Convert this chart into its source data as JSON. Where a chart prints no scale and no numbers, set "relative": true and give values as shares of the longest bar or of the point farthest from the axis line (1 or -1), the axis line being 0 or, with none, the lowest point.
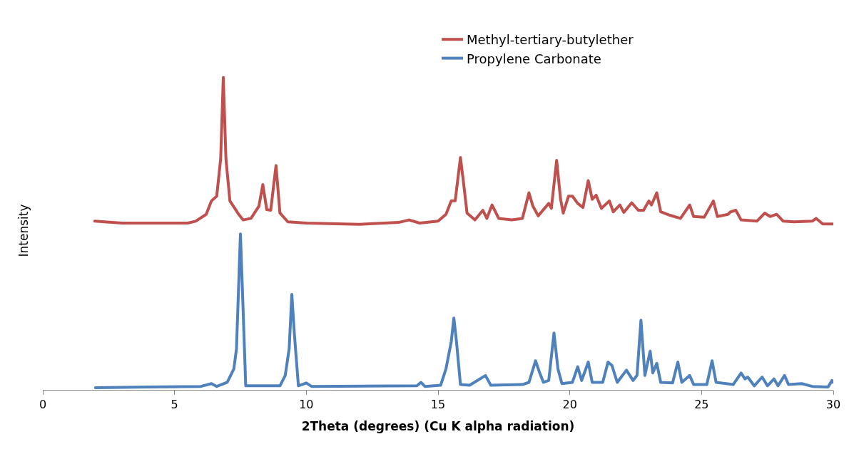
{
  "chart_data": {
    "type": "line",
    "relative": true,
    "xlabel": "2Theta (degrees) (Cu K alpha radiation)",
    "ylabel": "Intensity",
    "xlim": [
      0,
      30
    ],
    "xticks": [
      0,
      5,
      10,
      15,
      20,
      25,
      30
    ],
    "grid": false,
    "legend": "top right",
    "marker": "none",
    "line_style": "solid",
    "series": [
      {
        "name": "Methyl-tertiary-butylether",
        "color": "#c0504d",
        "x": [
          1.97,
          3,
          4,
          5,
          5.5,
          5.8,
          6.2,
          6.4,
          6.6,
          6.75,
          6.85,
          6.95,
          7.1,
          7.4,
          7.6,
          7.9,
          8.2,
          8.35,
          8.5,
          8.65,
          8.85,
          9.0,
          9.3,
          10,
          12,
          13.5,
          13.9,
          14.3,
          15,
          15.3,
          15.5,
          15.65,
          15.85,
          15.95,
          16.1,
          16.4,
          16.7,
          16.85,
          17.05,
          17.3,
          17.8,
          18.2,
          18.45,
          18.6,
          18.8,
          19.2,
          19.3,
          19.5,
          19.65,
          19.75,
          19.95,
          20.1,
          20.3,
          20.5,
          20.7,
          20.85,
          21.0,
          21.2,
          21.5,
          21.65,
          21.9,
          22.05,
          22.35,
          22.6,
          22.8,
          23.0,
          23.1,
          23.3,
          23.45,
          23.8,
          24.2,
          24.55,
          24.7,
          25.1,
          25.45,
          25.6,
          26.0,
          26.1,
          26.3,
          26.5,
          27.1,
          27.4,
          27.6,
          27.85,
          28.1,
          28.5,
          29.2,
          29.35,
          29.6,
          30
        ],
        "values": [
          0.54,
          0.534,
          0.534,
          0.534,
          0.534,
          0.54,
          0.562,
          0.605,
          0.62,
          0.74,
          1.0,
          0.74,
          0.605,
          0.566,
          0.544,
          0.549,
          0.588,
          0.657,
          0.577,
          0.575,
          0.718,
          0.566,
          0.538,
          0.534,
          0.53,
          0.536,
          0.544,
          0.534,
          0.54,
          0.562,
          0.605,
          0.605,
          0.744,
          0.675,
          0.566,
          0.544,
          0.575,
          0.549,
          0.592,
          0.549,
          0.544,
          0.549,
          0.631,
          0.588,
          0.557,
          0.597,
          0.581,
          0.735,
          0.61,
          0.566,
          0.62,
          0.62,
          0.597,
          0.584,
          0.67,
          0.61,
          0.623,
          0.581,
          0.605,
          0.57,
          0.592,
          0.568,
          0.599,
          0.575,
          0.575,
          0.605,
          0.592,
          0.631,
          0.57,
          0.559,
          0.549,
          0.592,
          0.555,
          0.553,
          0.605,
          0.555,
          0.562,
          0.57,
          0.575,
          0.544,
          0.54,
          0.566,
          0.555,
          0.562,
          0.54,
          0.538,
          0.54,
          0.549,
          0.531,
          0.531
        ]
      },
      {
        "name": "Propylene Carbonate",
        "color": "#4f81bd",
        "x": [
          2,
          4,
          6,
          6.4,
          6.6,
          7.0,
          7.25,
          7.35,
          7.5,
          7.6,
          7.7,
          9.0,
          9.2,
          9.35,
          9.45,
          9.55,
          9.7,
          10.0,
          10.2,
          14.2,
          14.35,
          14.5,
          15.1,
          15.3,
          15.5,
          15.6,
          15.7,
          15.85,
          16.2,
          16.8,
          17.0,
          18.2,
          18.45,
          18.7,
          18.85,
          19.0,
          19.2,
          19.4,
          19.55,
          19.7,
          20.1,
          20.3,
          20.45,
          20.7,
          20.85,
          21.25,
          21.45,
          21.6,
          21.8,
          22.15,
          22.4,
          22.55,
          22.7,
          22.85,
          23.05,
          23.15,
          23.3,
          23.45,
          23.9,
          24.1,
          24.25,
          24.55,
          24.7,
          25.2,
          25.4,
          25.55,
          26.2,
          26.5,
          26.65,
          26.75,
          27.0,
          27.3,
          27.5,
          27.75,
          27.9,
          28.15,
          28.3,
          28.8,
          29.2,
          29.8,
          29.95,
          30
        ],
        "values": [
          0.007,
          0.009,
          0.011,
          0.02,
          0.011,
          0.024,
          0.067,
          0.132,
          0.499,
          0.262,
          0.013,
          0.013,
          0.046,
          0.132,
          0.306,
          0.176,
          0.013,
          0.022,
          0.011,
          0.013,
          0.024,
          0.011,
          0.015,
          0.067,
          0.154,
          0.23,
          0.154,
          0.017,
          0.015,
          0.046,
          0.015,
          0.017,
          0.024,
          0.093,
          0.056,
          0.024,
          0.03,
          0.182,
          0.067,
          0.02,
          0.024,
          0.074,
          0.03,
          0.089,
          0.024,
          0.024,
          0.089,
          0.078,
          0.024,
          0.063,
          0.03,
          0.046,
          0.223,
          0.046,
          0.124,
          0.054,
          0.085,
          0.024,
          0.022,
          0.089,
          0.024,
          0.046,
          0.017,
          0.017,
          0.093,
          0.024,
          0.017,
          0.054,
          0.035,
          0.041,
          0.013,
          0.041,
          0.013,
          0.035,
          0.013,
          0.046,
          0.017,
          0.02,
          0.011,
          0.009,
          0.03,
          0.024
        ]
      }
    ]
  }
}
